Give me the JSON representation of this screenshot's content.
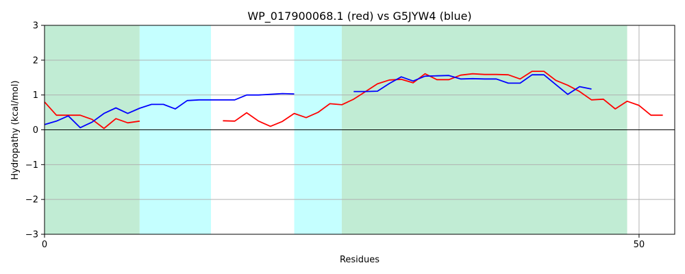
{
  "chart_data": {
    "type": "line",
    "title": "WP_017900068.1 (red) vs G5JYW4 (blue)",
    "xlabel": "Residues",
    "ylabel": "Hydropathy (kcal/mol)",
    "xlim": [
      0,
      53
    ],
    "ylim": [
      -3,
      3
    ],
    "xticks": [
      0,
      50
    ],
    "yticks": [
      -3,
      -2,
      -1,
      0,
      1,
      2,
      3
    ],
    "grid": true,
    "regions": [
      {
        "start": 0,
        "end": 8,
        "color": "#c1ecd4"
      },
      {
        "start": 8,
        "end": 14,
        "color": "#c5ffff"
      },
      {
        "start": 21,
        "end": 25,
        "color": "#c5ffff"
      },
      {
        "start": 25,
        "end": 49,
        "color": "#c1ecd4"
      }
    ],
    "series": [
      {
        "color": "#ff0000",
        "segments": [
          [
            [
              0,
              0.8
            ],
            [
              1,
              0.42
            ],
            [
              2,
              0.42
            ],
            [
              3,
              0.42
            ],
            [
              4,
              0.3
            ],
            [
              5,
              0.04
            ],
            [
              6,
              0.32
            ],
            [
              7,
              0.2
            ],
            [
              8,
              0.25
            ]
          ],
          [
            [
              15,
              0.26
            ],
            [
              16,
              0.25
            ],
            [
              17,
              0.49
            ],
            [
              18,
              0.25
            ],
            [
              19,
              0.1
            ],
            [
              20,
              0.24
            ],
            [
              21,
              0.47
            ],
            [
              22,
              0.35
            ],
            [
              23,
              0.5
            ],
            [
              24,
              0.75
            ],
            [
              25,
              0.72
            ],
            [
              26,
              0.88
            ],
            [
              27,
              1.1
            ],
            [
              28,
              1.32
            ],
            [
              29,
              1.43
            ],
            [
              30,
              1.45
            ],
            [
              31,
              1.35
            ],
            [
              32,
              1.61
            ],
            [
              33,
              1.44
            ],
            [
              34,
              1.44
            ],
            [
              35,
              1.57
            ],
            [
              36,
              1.61
            ],
            [
              37,
              1.59
            ],
            [
              38,
              1.59
            ],
            [
              39,
              1.58
            ],
            [
              40,
              1.46
            ],
            [
              41,
              1.68
            ],
            [
              42,
              1.68
            ],
            [
              43,
              1.42
            ],
            [
              44,
              1.28
            ],
            [
              45,
              1.1
            ],
            [
              46,
              0.86
            ],
            [
              47,
              0.88
            ],
            [
              48,
              0.6
            ],
            [
              49,
              0.82
            ],
            [
              50,
              0.7
            ],
            [
              51,
              0.42
            ],
            [
              52,
              0.42
            ]
          ]
        ]
      },
      {
        "color": "#0000ff",
        "segments": [
          [
            [
              0,
              0.15
            ],
            [
              1,
              0.25
            ],
            [
              2,
              0.4
            ],
            [
              3,
              0.06
            ],
            [
              4,
              0.22
            ],
            [
              5,
              0.47
            ],
            [
              6,
              0.63
            ],
            [
              7,
              0.47
            ],
            [
              8,
              0.62
            ],
            [
              9,
              0.73
            ],
            [
              10,
              0.73
            ],
            [
              11,
              0.6
            ],
            [
              12,
              0.84
            ],
            [
              13,
              0.86
            ],
            [
              14,
              0.86
            ],
            [
              15,
              0.86
            ],
            [
              16,
              0.86
            ],
            [
              17,
              1.0
            ],
            [
              18,
              1.0
            ],
            [
              19,
              1.02
            ],
            [
              20,
              1.04
            ],
            [
              21,
              1.03
            ]
          ],
          [
            [
              26,
              1.1
            ],
            [
              27,
              1.1
            ],
            [
              28,
              1.11
            ],
            [
              29,
              1.33
            ],
            [
              30,
              1.52
            ],
            [
              31,
              1.4
            ],
            [
              32,
              1.54
            ],
            [
              33,
              1.55
            ],
            [
              34,
              1.56
            ],
            [
              35,
              1.46
            ],
            [
              36,
              1.47
            ],
            [
              37,
              1.46
            ],
            [
              38,
              1.46
            ],
            [
              39,
              1.34
            ],
            [
              40,
              1.34
            ],
            [
              41,
              1.58
            ],
            [
              42,
              1.58
            ],
            [
              43,
              1.3
            ],
            [
              44,
              1.02
            ],
            [
              45,
              1.24
            ],
            [
              46,
              1.17
            ]
          ]
        ]
      }
    ]
  }
}
